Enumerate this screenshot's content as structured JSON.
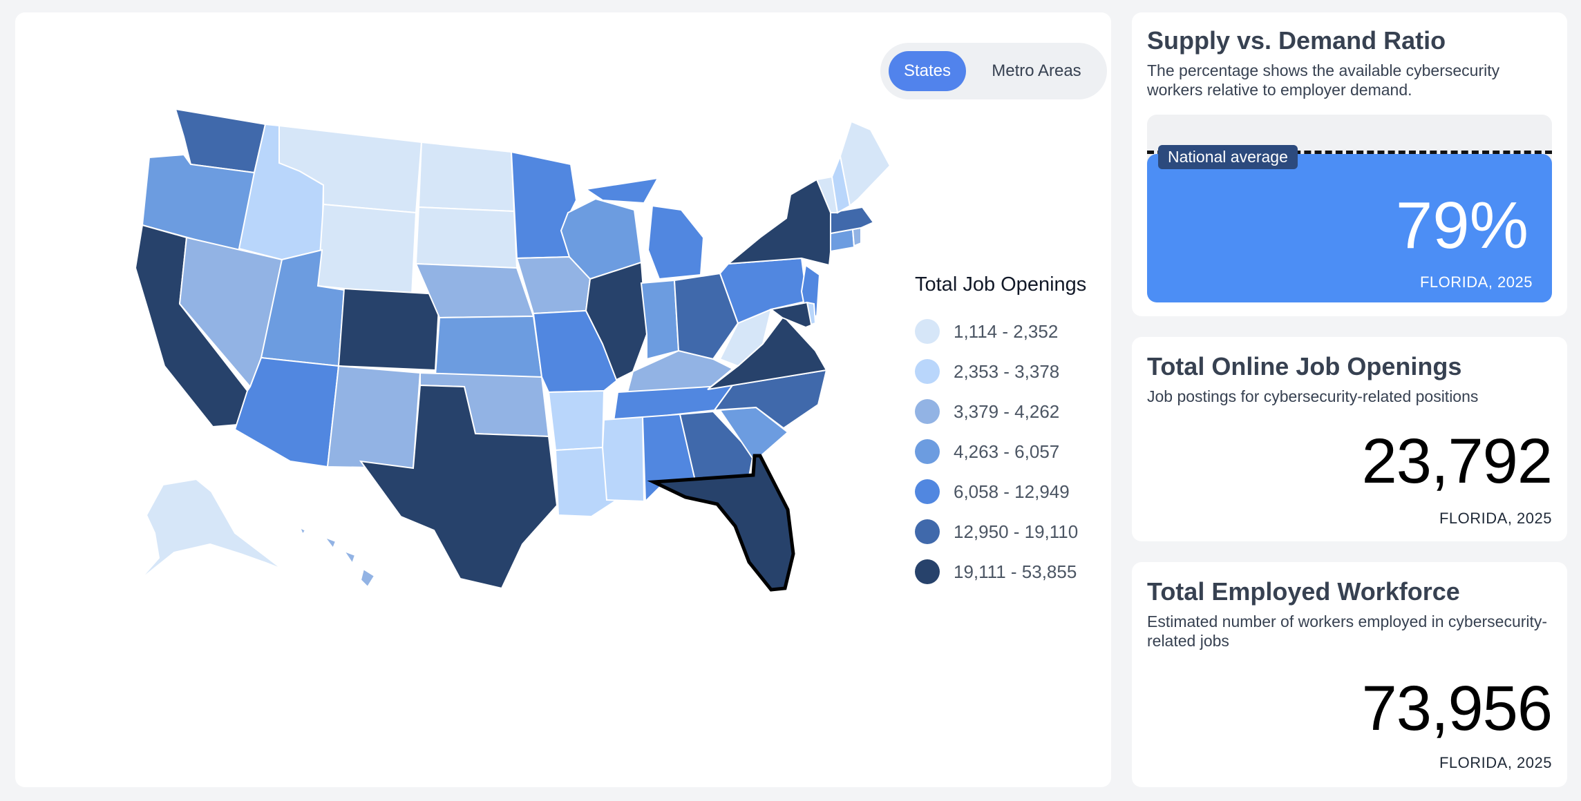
{
  "map": {
    "toggle": {
      "states_label": "States",
      "metro_label": "Metro Areas",
      "active": "states"
    },
    "selected_state": "Florida",
    "legend": {
      "title": "Total Job Openings",
      "bins": [
        {
          "label": "1,114 - 2,352",
          "color": "#d6e6f8"
        },
        {
          "label": "2,353 - 3,378",
          "color": "#b9d6fb"
        },
        {
          "label": "3,379 - 4,262",
          "color": "#92b3e4"
        },
        {
          "label": "4,263 - 6,057",
          "color": "#6c9ce0"
        },
        {
          "label": "6,058 - 12,949",
          "color": "#5187e0"
        },
        {
          "label": "12,950 - 19,110",
          "color": "#4069ab"
        },
        {
          "label": "19,111 - 53,855",
          "color": "#27426b"
        }
      ]
    },
    "states": {
      "WA": 5,
      "OR": 3,
      "CA": 6,
      "NV": 2,
      "ID": 1,
      "MT": 0,
      "WY": 0,
      "UT": 3,
      "AZ": 4,
      "CO": 6,
      "NM": 2,
      "ND": 0,
      "SD": 0,
      "NE": 2,
      "KS": 3,
      "OK": 2,
      "TX": 6,
      "MN": 4,
      "IA": 2,
      "MO": 4,
      "AR": 1,
      "LA": 1,
      "WI": 3,
      "IL": 6,
      "MI": 4,
      "IN": 3,
      "OH": 5,
      "KY": 2,
      "TN": 4,
      "MS": 1,
      "AL": 4,
      "GA": 5,
      "FL": 6,
      "SC": 3,
      "NC": 5,
      "VA": 6,
      "WV": 0,
      "PA": 4,
      "NY": 6,
      "NJ": 4,
      "MD": 6,
      "DE": 1,
      "CT": 3,
      "RI": 2,
      "MA": 5,
      "VT": 0,
      "NH": 1,
      "ME": 0,
      "AK": 0,
      "HI": 2
    }
  },
  "ratio_card": {
    "title": "Supply vs. Demand Ratio",
    "description": "The percentage shows the available cybersecurity workers relative to employer demand.",
    "national_average_label": "National average",
    "national_average_fraction": 0.81,
    "value_fraction": 0.79,
    "value_label": "79%",
    "caption": "FLORIDA, 2025"
  },
  "openings_card": {
    "title": "Total Online Job Openings",
    "description": "Job postings for cybersecurity-related positions",
    "value": "23,792",
    "caption": "FLORIDA, 2025"
  },
  "workforce_card": {
    "title": "Total Employed Workforce",
    "description": "Estimated number of workers employed in cybersecurity-related jobs",
    "value": "73,956",
    "caption": "FLORIDA, 2025"
  }
}
